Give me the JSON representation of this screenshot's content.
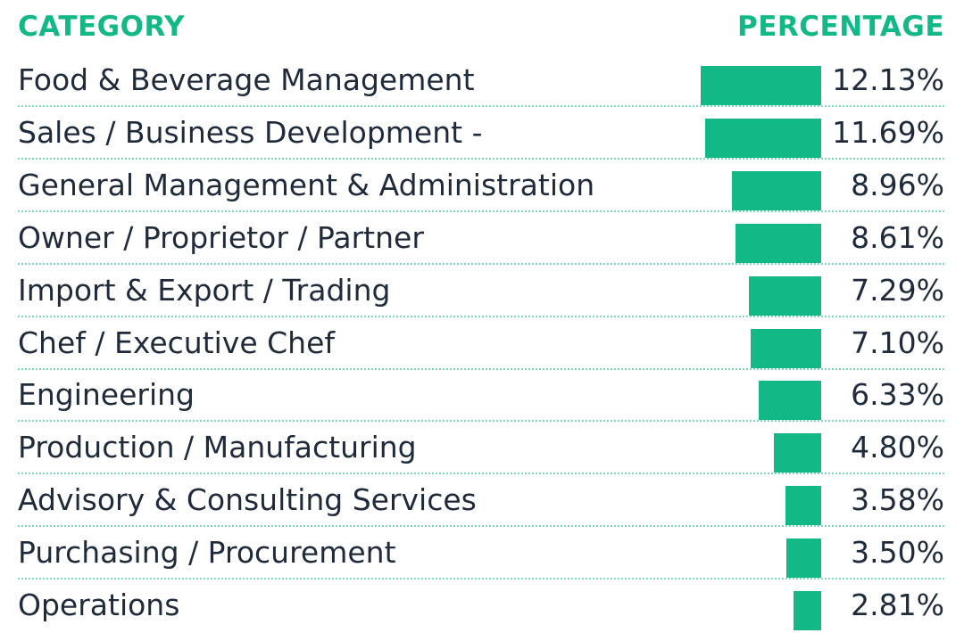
{
  "colors": {
    "accent": "#12b886",
    "text": "#1f2a3a",
    "divider": "#7fd9bd"
  },
  "chart_data": {
    "type": "bar",
    "orientation": "horizontal",
    "columns": {
      "category_header": "CATEGORY",
      "percentage_header": "PERCENTAGE"
    },
    "categories": [
      "Food & Beverage Management",
      "Sales / Business Development -",
      "General Management & Administration",
      "Owner / Proprietor / Partner",
      "Import & Export / Trading",
      "Chef / Executive Chef",
      "Engineering",
      "Production / Manufacturing",
      "Advisory & Consulting Services",
      "Purchasing / Procurement",
      "Operations"
    ],
    "values": [
      12.13,
      11.69,
      8.96,
      8.61,
      7.29,
      7.1,
      6.33,
      4.8,
      3.58,
      3.5,
      2.81
    ],
    "value_labels": [
      "12.13%",
      "11.69%",
      "8.96%",
      "8.61%",
      "7.29%",
      "7.10%",
      "6.33%",
      "4.80%",
      "3.58%",
      "3.50%",
      "2.81%"
    ],
    "xlim": [
      0,
      12.13
    ]
  }
}
